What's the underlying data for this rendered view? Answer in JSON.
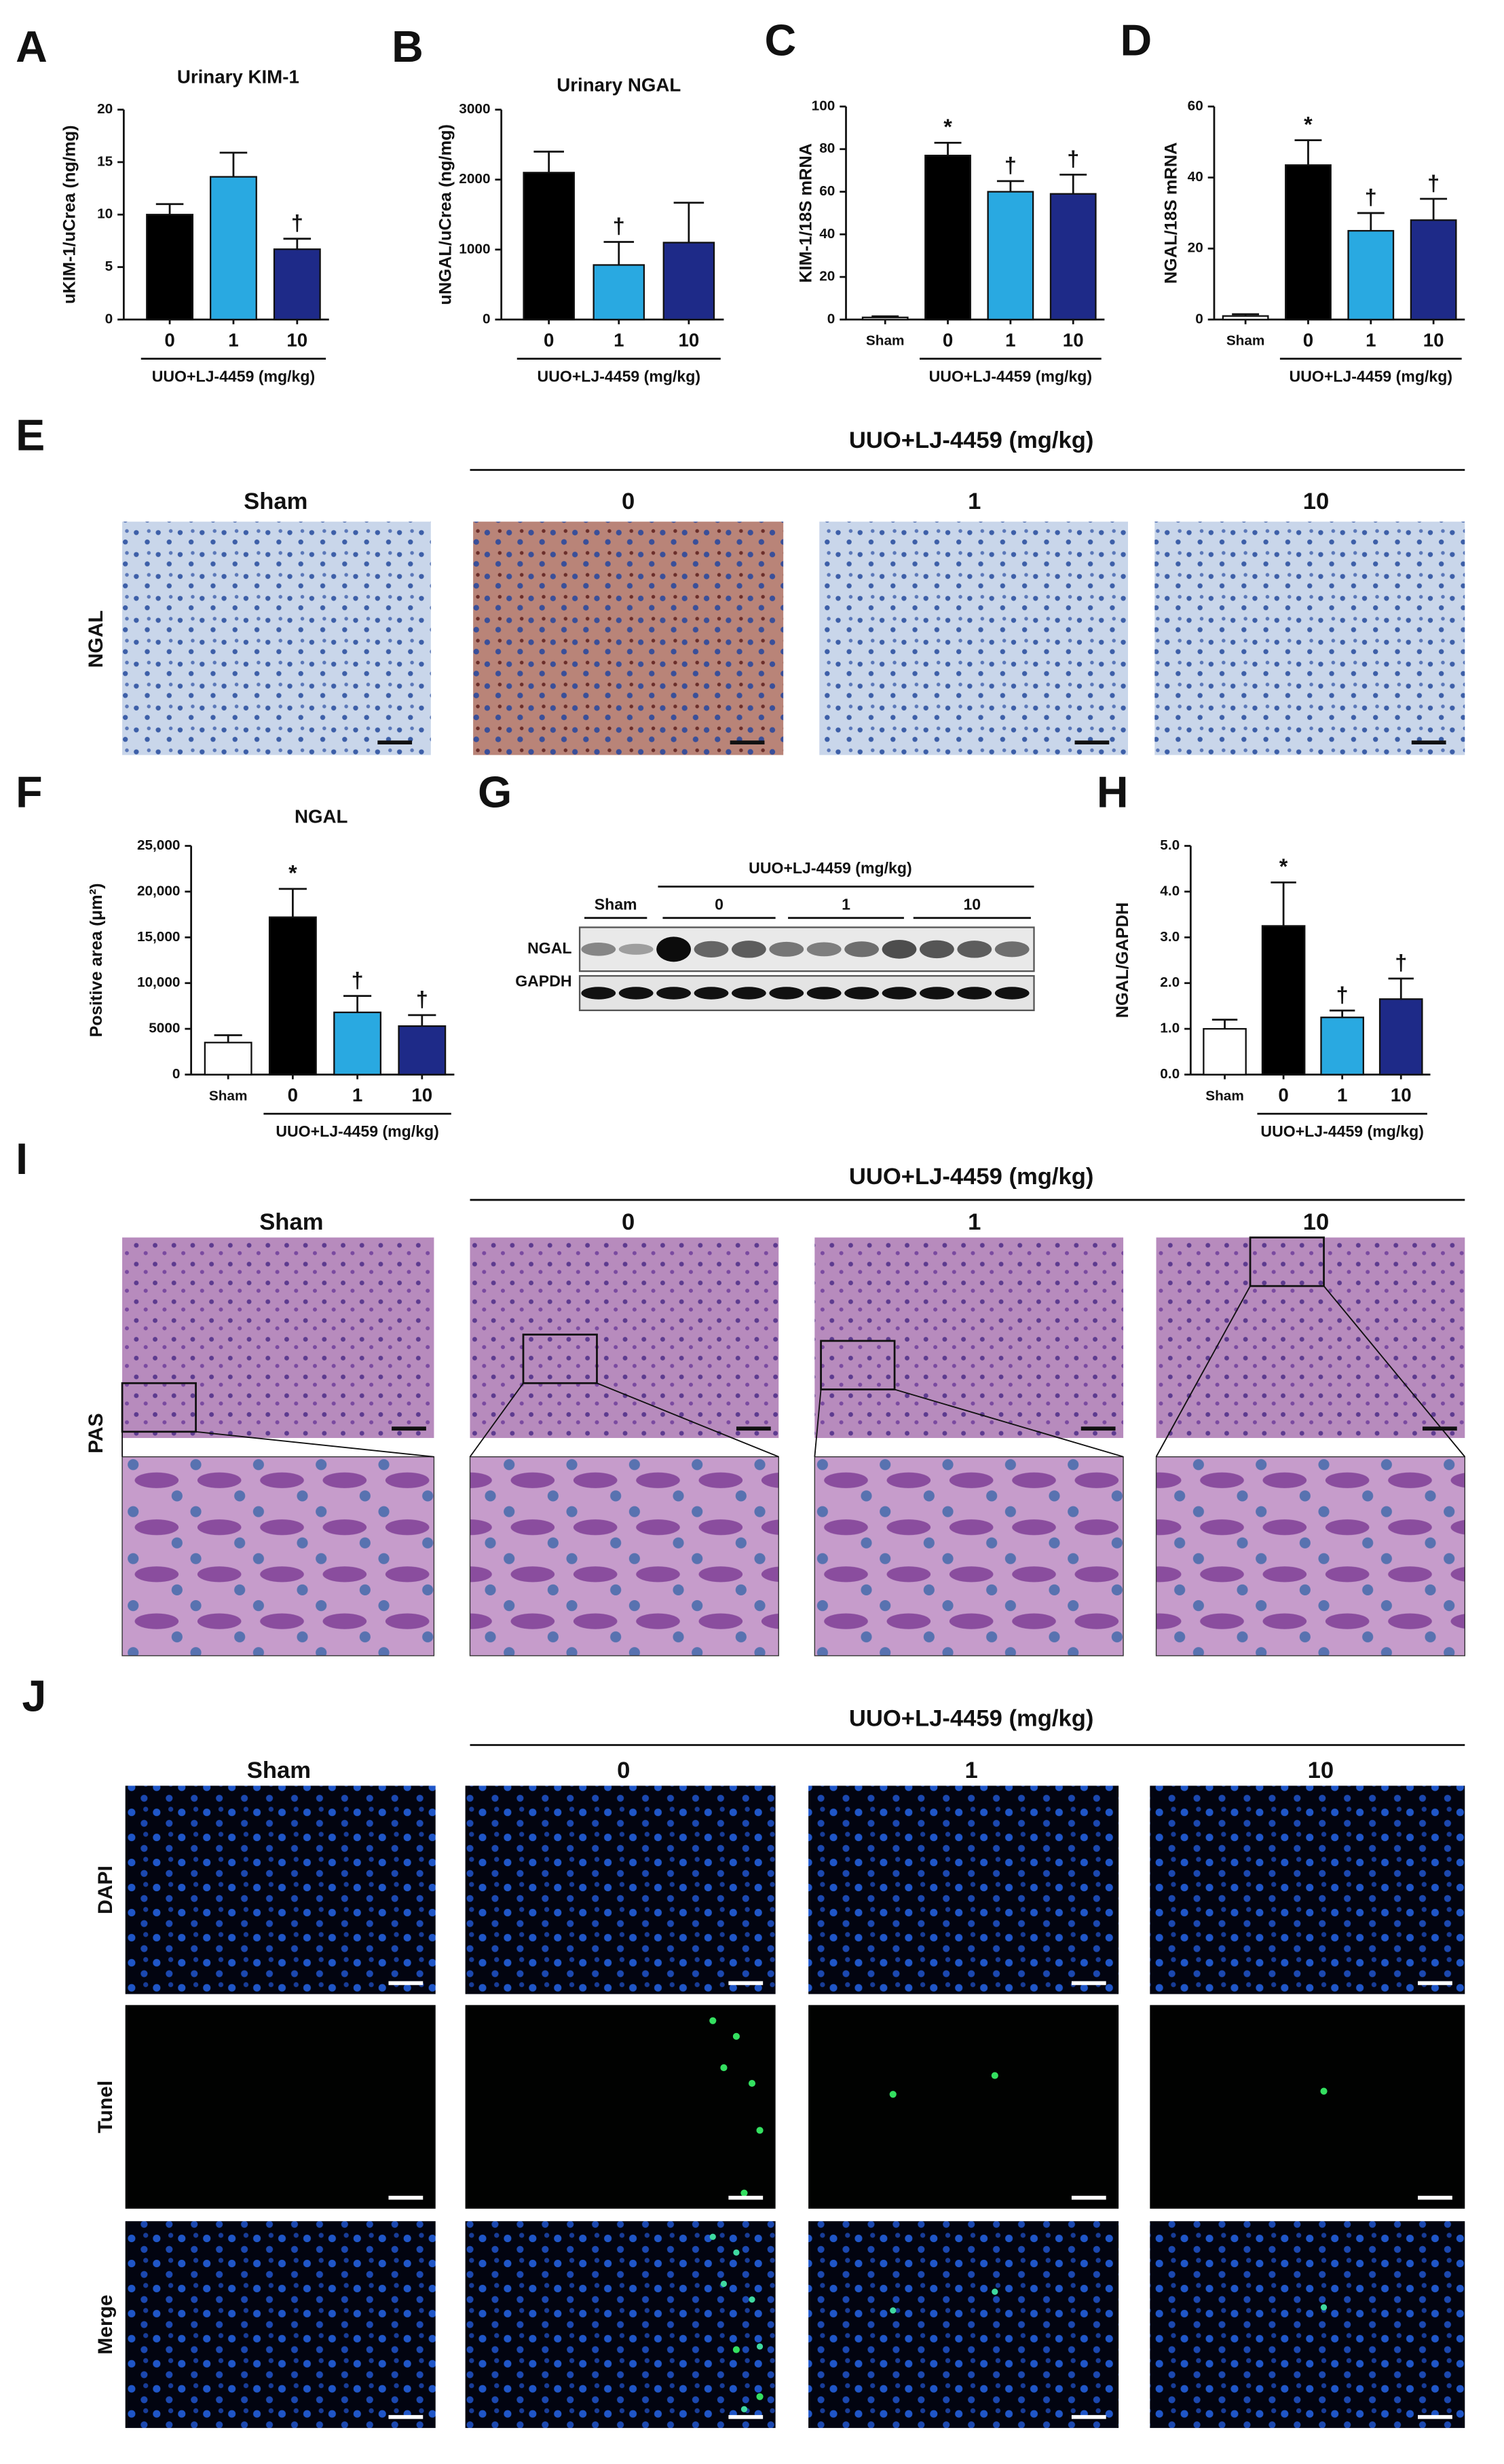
{
  "chart_data": [
    {
      "type": "bar",
      "panel": "A",
      "title": "Urinary KIM-1",
      "ylabel": "uKIM-1/uCrea (ng/mg)",
      "categories": [
        "0",
        "1",
        "10"
      ],
      "values": [
        10,
        13.6,
        6.7
      ],
      "errors": [
        1,
        2.3,
        1
      ],
      "annotations": [
        null,
        null,
        "†"
      ],
      "colors": [
        "#000000",
        "#29a9e1",
        "#1e2a88"
      ],
      "ylim": [
        0,
        20
      ],
      "yticks": [
        0,
        5,
        10,
        15,
        20
      ],
      "group_label": "UUO+LJ-4459 (mg/kg)"
    },
    {
      "type": "bar",
      "panel": "B",
      "title": "Urinary NGAL",
      "ylabel": "uNGAL/uCrea (ng/mg)",
      "categories": [
        "0",
        "1",
        "10"
      ],
      "values": [
        2100,
        780,
        1100
      ],
      "errors": [
        300,
        330,
        570
      ],
      "annotations": [
        null,
        "†",
        null
      ],
      "colors": [
        "#000000",
        "#29a9e1",
        "#1e2a88"
      ],
      "ylim": [
        0,
        3000
      ],
      "yticks": [
        0,
        1000,
        2000,
        3000
      ],
      "group_label": "UUO+LJ-4459 (mg/kg)"
    },
    {
      "type": "bar",
      "panel": "C",
      "ylabel": "KIM-1/18S mRNA",
      "categories": [
        "Sham",
        "0",
        "1",
        "10"
      ],
      "values": [
        1,
        77,
        60,
        59
      ],
      "errors": [
        0.5,
        6,
        5,
        9
      ],
      "annotations": [
        null,
        "*",
        "†",
        "†"
      ],
      "colors": [
        "#ffffff",
        "#000000",
        "#29a9e1",
        "#1e2a88"
      ],
      "ylim": [
        0,
        100
      ],
      "yticks": [
        0,
        20,
        40,
        60,
        80,
        100
      ],
      "group_label": "UUO+LJ-4459 (mg/kg)"
    },
    {
      "type": "bar",
      "panel": "D",
      "ylabel": "NGAL/18S mRNA",
      "categories": [
        "Sham",
        "0",
        "1",
        "10"
      ],
      "values": [
        1,
        43.5,
        25,
        28
      ],
      "errors": [
        0.5,
        7,
        5,
        6
      ],
      "annotations": [
        null,
        "*",
        "†",
        "†"
      ],
      "colors": [
        "#ffffff",
        "#000000",
        "#29a9e1",
        "#1e2a88"
      ],
      "ylim": [
        0,
        60
      ],
      "yticks": [
        0,
        20,
        40,
        60
      ],
      "group_label": "UUO+LJ-4459 (mg/kg)"
    },
    {
      "type": "bar",
      "panel": "F",
      "title": "NGAL",
      "ylabel": "Positive area (μm²)",
      "categories": [
        "Sham",
        "0",
        "1",
        "10"
      ],
      "values": [
        3500,
        17200,
        6800,
        5300
      ],
      "errors": [
        800,
        3100,
        1800,
        1200
      ],
      "annotations": [
        null,
        "*",
        "†",
        "†"
      ],
      "colors": [
        "#ffffff",
        "#000000",
        "#29a9e1",
        "#1e2a88"
      ],
      "ylim": [
        0,
        25000
      ],
      "yticks": [
        0,
        5000,
        {
          "value": 10000,
          "label": "10,000"
        },
        {
          "value": 15000,
          "label": "15,000"
        },
        {
          "value": 20000,
          "label": "20,000"
        },
        {
          "value": 25000,
          "label": "25,000"
        }
      ],
      "group_label": "UUO+LJ-4459 (mg/kg)"
    },
    {
      "type": "bar",
      "panel": "H",
      "ylabel": "NGAL/GAPDH",
      "categories": [
        "Sham",
        "0",
        "1",
        "10"
      ],
      "values": [
        1,
        3.25,
        1.25,
        1.65
      ],
      "errors": [
        0.2,
        0.95,
        0.15,
        0.45
      ],
      "annotations": [
        null,
        "*",
        "†",
        "†"
      ],
      "colors": [
        "#ffffff",
        "#000000",
        "#29a9e1",
        "#1e2a88"
      ],
      "ylim": [
        0,
        5
      ],
      "yticks": [
        {
          "value": 0,
          "label": "0.0"
        },
        {
          "value": 1,
          "label": "1.0"
        },
        {
          "value": 2,
          "label": "2.0"
        },
        {
          "value": 3,
          "label": "3.0"
        },
        {
          "value": 4,
          "label": "4.0"
        },
        {
          "value": 5,
          "label": "5.0"
        }
      ],
      "group_label": "UUO+LJ-4459 (mg/kg)"
    }
  ],
  "figure": {
    "E": {
      "letter": "E",
      "group_label": "UUO+LJ-4459 (mg/kg)",
      "columns": [
        "Sham",
        "0",
        "1",
        "10"
      ],
      "rows": [
        "NGAL"
      ]
    },
    "G": {
      "letter": "G",
      "group_label": "UUO+LJ-4459 (mg/kg)",
      "lanes": [
        "Sham",
        "0",
        "1",
        "10"
      ],
      "rows": [
        "NGAL",
        "GAPDH"
      ]
    },
    "I": {
      "letter": "I",
      "group_label": "UUO+LJ-4459 (mg/kg)",
      "columns": [
        "Sham",
        "0",
        "1",
        "10"
      ],
      "rows": [
        "PAS"
      ]
    },
    "J": {
      "letter": "J",
      "group_label": "UUO+LJ-4459 (mg/kg)",
      "columns": [
        "Sham",
        "0",
        "1",
        "10"
      ],
      "rows": [
        "DAPI",
        "Tunel",
        "Merge"
      ]
    }
  }
}
